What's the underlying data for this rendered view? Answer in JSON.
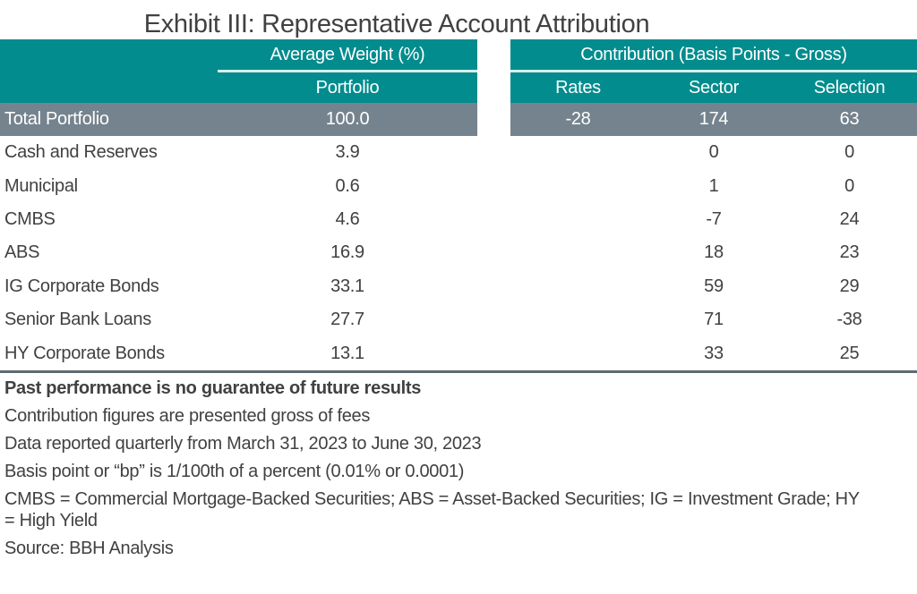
{
  "title": "Exhibit III: Representative Account Attribution",
  "colors": {
    "teal": "#028C8E",
    "separator_line": "#D8EEEC",
    "total_row_bg": "#75838E",
    "table_border": "#5F6B72",
    "text": "#414042",
    "header_text": "#FFFFFF"
  },
  "table": {
    "left_group_header": "Average Weight (%)",
    "right_group_header": "Contribution (Basis Points - Gross)",
    "sub_headers": {
      "portfolio": "Portfolio",
      "rates": "Rates",
      "sector": "Sector",
      "selection": "Selection"
    },
    "total_row": {
      "label": "Total Portfolio",
      "portfolio": "100.0",
      "rates": "-28",
      "sector": "174",
      "selection": "63"
    },
    "rows": [
      {
        "label": "Cash and Reserves",
        "portfolio": "3.9",
        "rates": "",
        "sector": "0",
        "selection": "0"
      },
      {
        "label": "Municipal",
        "portfolio": "0.6",
        "rates": "",
        "sector": "1",
        "selection": "0"
      },
      {
        "label": "CMBS",
        "portfolio": "4.6",
        "rates": "",
        "sector": "-7",
        "selection": "24"
      },
      {
        "label": "ABS",
        "portfolio": "16.9",
        "rates": "",
        "sector": "18",
        "selection": "23"
      },
      {
        "label": "IG Corporate Bonds",
        "portfolio": "33.1",
        "rates": "",
        "sector": "59",
        "selection": "29"
      },
      {
        "label": "Senior Bank Loans",
        "portfolio": "27.7",
        "rates": "",
        "sector": "71",
        "selection": "-38"
      },
      {
        "label": "HY Corporate Bonds",
        "portfolio": "13.1",
        "rates": "",
        "sector": "33",
        "selection": "25"
      }
    ]
  },
  "footnotes": {
    "past_performance": "Past performance is no guarantee of future results",
    "gross_of_fees": "Contribution figures are presented gross of fees",
    "reporting_period": "Data reported quarterly from March 31, 2023 to June 30, 2023",
    "basis_point_definition": "Basis point or “bp” is 1/100th of a percent (0.01% or 0.0001)",
    "abbreviations": "CMBS = Commercial Mortgage-Backed Securities; ABS = Asset-Backed Securities; IG = Investment Grade; HY\n= High Yield",
    "source": "Source: BBH Analysis"
  }
}
